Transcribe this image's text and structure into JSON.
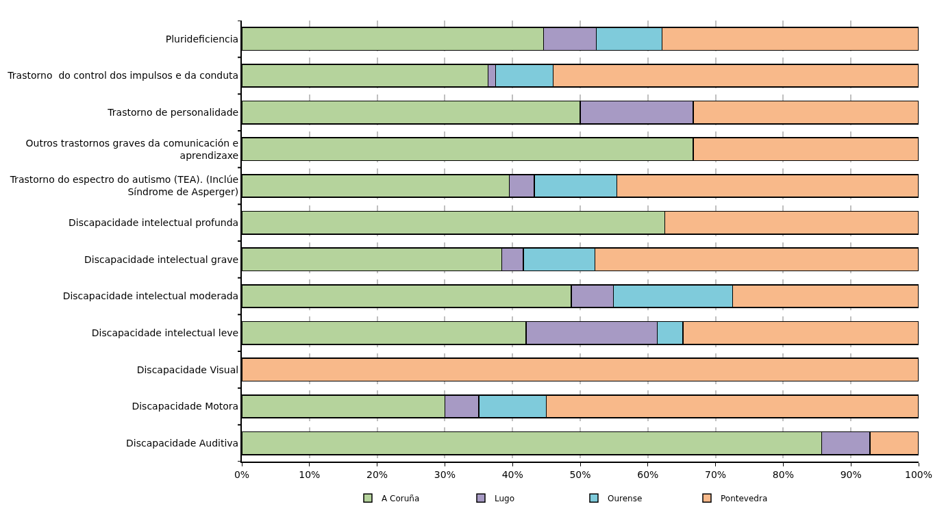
{
  "chart_data": {
    "type": "bar",
    "orientation": "horizontal",
    "stacked": true,
    "categories": [
      "Plurideficiencia",
      "Trastorno  do control dos impulsos e da conduta",
      "Trastorno de personalidade",
      "Outros trastornos graves da comunicación e aprendizaxe",
      "Trastorno do espectro do autismo (TEA). (Inclúe Síndrome de Asperger)",
      "Discapacidade intelectual profunda",
      "Discapacidade intelectual grave",
      "Discapacidade intelectual moderada",
      "Discapacidade intelectual leve",
      "Discapacidade Visual",
      "Discapacidade Motora",
      "Discapacidade Auditiva"
    ],
    "series": [
      {
        "name": "A Coruña",
        "color": "#b5d39c",
        "values": [
          44.6,
          36.4,
          50.0,
          66.7,
          39.5,
          62.5,
          38.4,
          48.7,
          42.0,
          0,
          30.0,
          85.7
        ]
      },
      {
        "name": "Lugo",
        "color": "#a79ac4",
        "values": [
          7.8,
          1.1,
          16.7,
          0,
          3.7,
          0,
          3.2,
          6.2,
          19.4,
          0,
          5.0,
          7.1
        ]
      },
      {
        "name": "Ourense",
        "color": "#7fcbdb",
        "values": [
          9.7,
          8.5,
          0,
          0,
          12.2,
          0,
          10.6,
          17.6,
          3.8,
          0,
          10.0,
          0
        ]
      },
      {
        "name": "Pontevedra",
        "color": "#f8b98a",
        "values": [
          37.9,
          54.0,
          33.3,
          33.3,
          44.6,
          37.5,
          47.8,
          27.5,
          34.8,
          100,
          55.0,
          7.2
        ]
      }
    ],
    "xlim": [
      0,
      100
    ],
    "xticks": [
      {
        "value": 0,
        "label": "0%"
      },
      {
        "value": 10,
        "label": "10%"
      },
      {
        "value": 20,
        "label": "20%"
      },
      {
        "value": 30,
        "label": "30%"
      },
      {
        "value": 40,
        "label": "40%"
      },
      {
        "value": 50,
        "label": "50%"
      },
      {
        "value": 60,
        "label": "60%"
      },
      {
        "value": 70,
        "label": "70%"
      },
      {
        "value": 80,
        "label": "80%"
      },
      {
        "value": 90,
        "label": "90%"
      },
      {
        "value": 100,
        "label": "100%"
      }
    ],
    "grid": "x",
    "legend": "bottom"
  }
}
